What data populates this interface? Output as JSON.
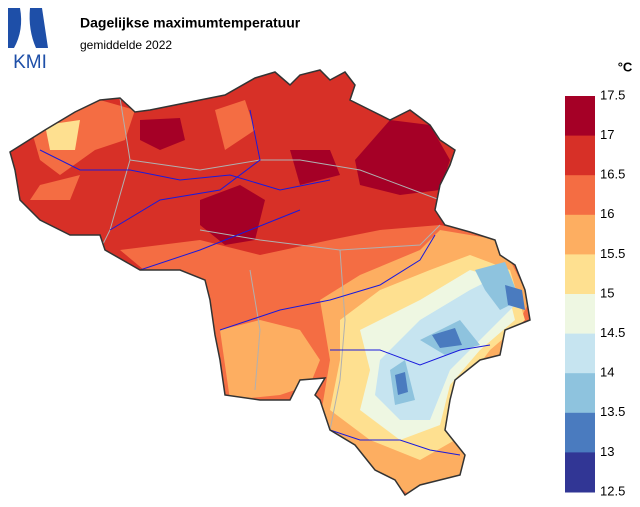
{
  "header": {
    "logo": "KMI",
    "title": "Dagelijkse maximumtemperatuur",
    "subtitle": "gemiddelde 2022"
  },
  "legend": {
    "unit": "°C",
    "ticks": [
      17.5,
      17,
      16.5,
      16,
      15.5,
      15,
      14.5,
      14,
      13.5,
      13,
      12.5
    ],
    "colors": [
      "#a50026",
      "#d73027",
      "#f46d43",
      "#fdae61",
      "#fee090",
      "#eef7e2",
      "#c6e4f0",
      "#8ec3de",
      "#4a7bbf",
      "#313695"
    ]
  }
}
